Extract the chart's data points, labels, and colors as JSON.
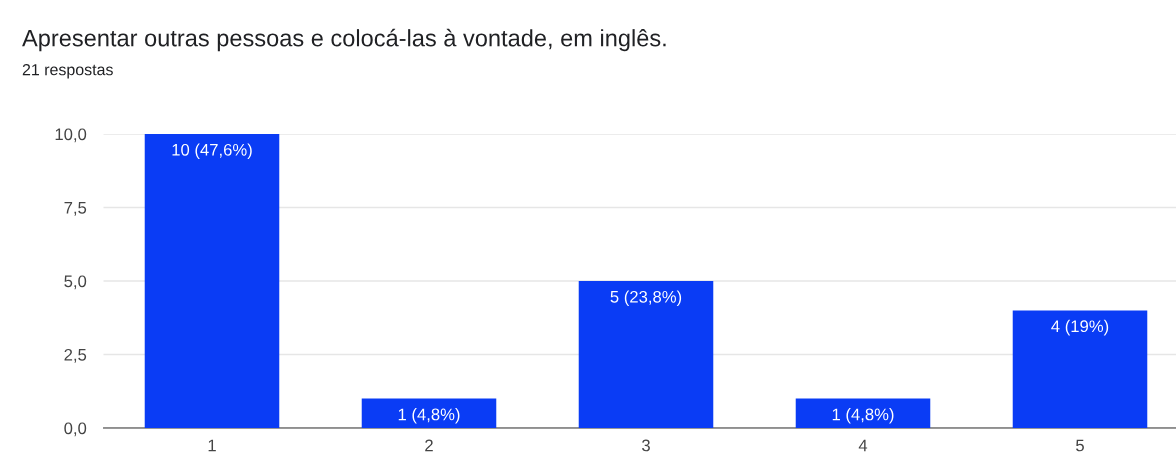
{
  "chart_data": {
    "type": "bar",
    "title": "Apresentar outras pessoas e colocá-las à vontade, em inglês.",
    "subtitle": "21 respostas",
    "categories": [
      "1",
      "2",
      "3",
      "4",
      "5"
    ],
    "values": [
      10,
      1,
      5,
      1,
      4
    ],
    "value_labels": [
      "10 (47,6%)",
      "1 (4,8%)",
      "5 (23,8%)",
      "1 (4,8%)",
      "4 (19%)"
    ],
    "color": "#0a3cf5",
    "ylim": [
      0,
      10
    ],
    "yticks": [
      {
        "value": 0,
        "label": "0,0"
      },
      {
        "value": 2.5,
        "label": "2,5"
      },
      {
        "value": 5,
        "label": "5,0"
      },
      {
        "value": 7.5,
        "label": "7,5"
      },
      {
        "value": 10,
        "label": "10,0"
      }
    ],
    "grid": "y"
  }
}
